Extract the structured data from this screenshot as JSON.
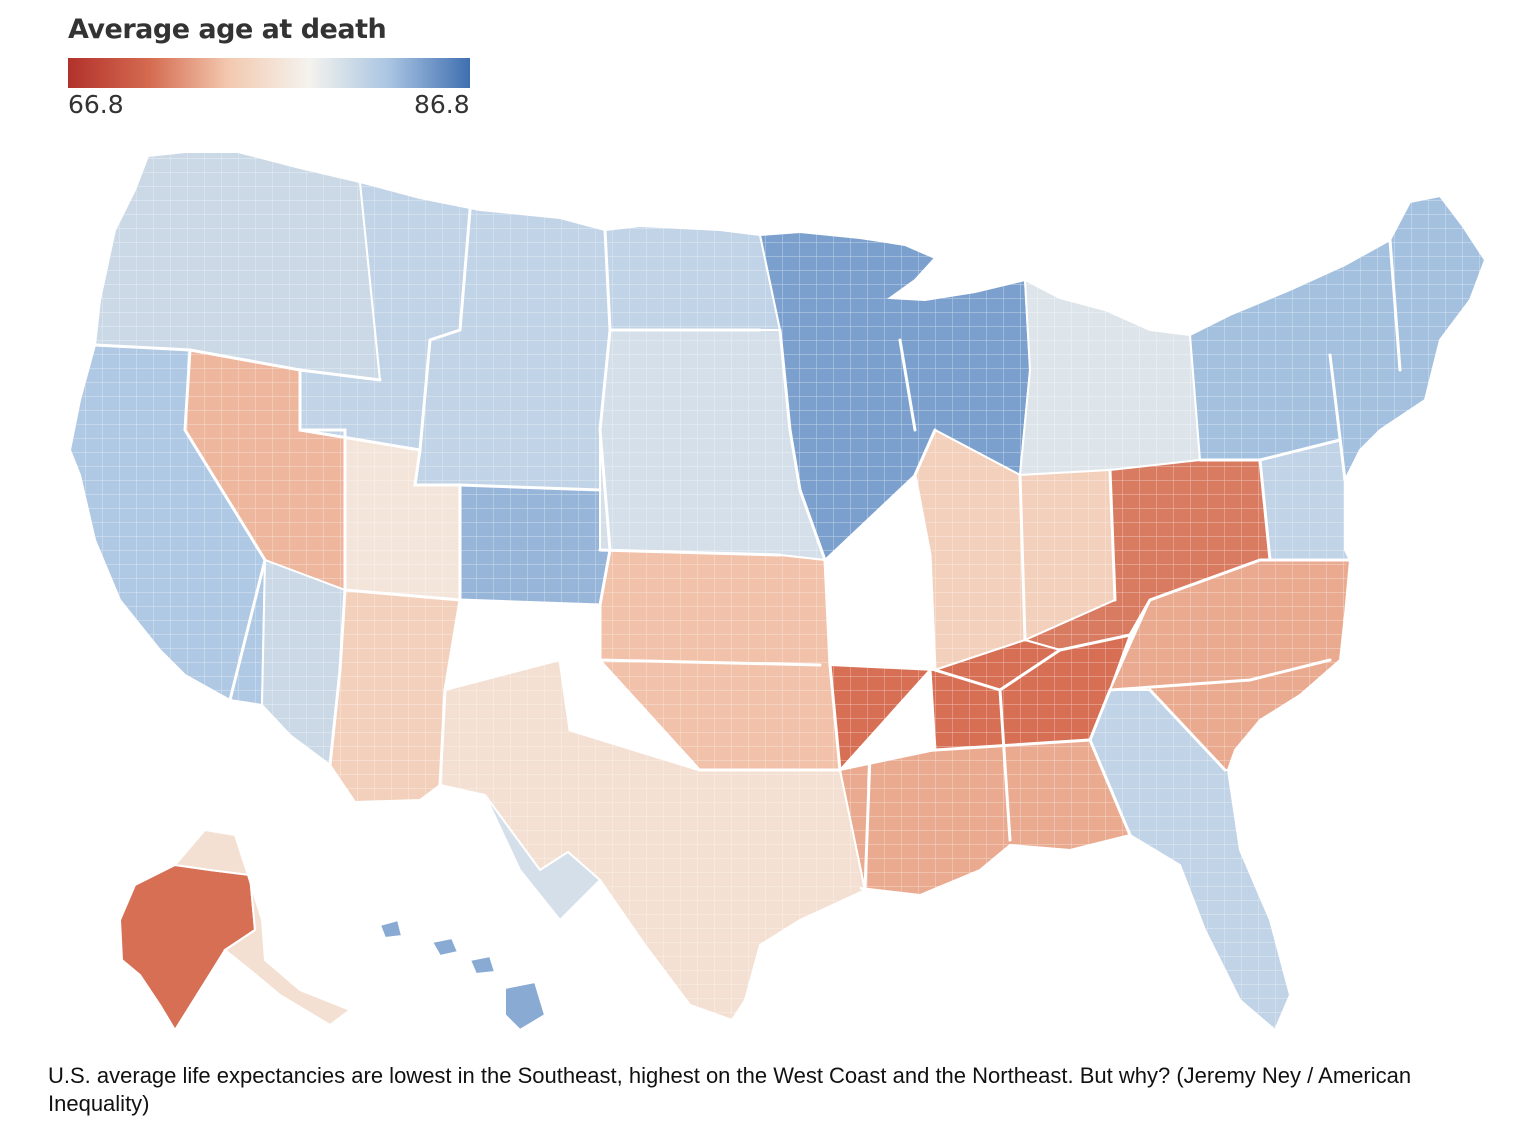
{
  "legend": {
    "title": "Average age at death",
    "min_label": "66.8",
    "max_label": "86.8",
    "min_value": 66.8,
    "max_value": 86.8,
    "gradient_colors": [
      "#b2312c",
      "#d46a4f",
      "#f3c9b0",
      "#f4f3ee",
      "#a9c4e2",
      "#3f6fb0"
    ]
  },
  "map": {
    "subject": "U.S. counties",
    "regions": [
      {
        "name": "pacific-northwest",
        "value": 81.0
      },
      {
        "name": "california",
        "value": 82.5
      },
      {
        "name": "nevada",
        "value": 74.0
      },
      {
        "name": "great-basin",
        "value": 77.5
      },
      {
        "name": "mountain-west",
        "value": 81.5
      },
      {
        "name": "colorado",
        "value": 83.5
      },
      {
        "name": "southwest",
        "value": 75.5
      },
      {
        "name": "arizona",
        "value": 81.0
      },
      {
        "name": "northern-plains",
        "value": 81.5
      },
      {
        "name": "upper-midwest",
        "value": 84.5
      },
      {
        "name": "central-plains",
        "value": 80.5
      },
      {
        "name": "southern-plains",
        "value": 74.5
      },
      {
        "name": "texas",
        "value": 77.0
      },
      {
        "name": "south-texas",
        "value": 80.5
      },
      {
        "name": "great-lakes",
        "value": 80.0
      },
      {
        "name": "ohio-valley",
        "value": 75.5
      },
      {
        "name": "appalachia",
        "value": 71.5
      },
      {
        "name": "deep-south",
        "value": 71.0
      },
      {
        "name": "gulf-coast",
        "value": 73.5
      },
      {
        "name": "florida",
        "value": 81.5
      },
      {
        "name": "carolinas",
        "value": 73.5
      },
      {
        "name": "mid-atlantic",
        "value": 81.5
      },
      {
        "name": "northeast",
        "value": 83.0
      },
      {
        "name": "alaska-west",
        "value": 71.0
      },
      {
        "name": "alaska-east",
        "value": 77.0
      },
      {
        "name": "hawaii",
        "value": 84.0
      }
    ]
  },
  "caption": {
    "text": "U.S. average life expectancies are lowest in the Southeast, highest on the West Coast and the Northeast. But why? (Jeremy Ney / American Inequality)"
  }
}
